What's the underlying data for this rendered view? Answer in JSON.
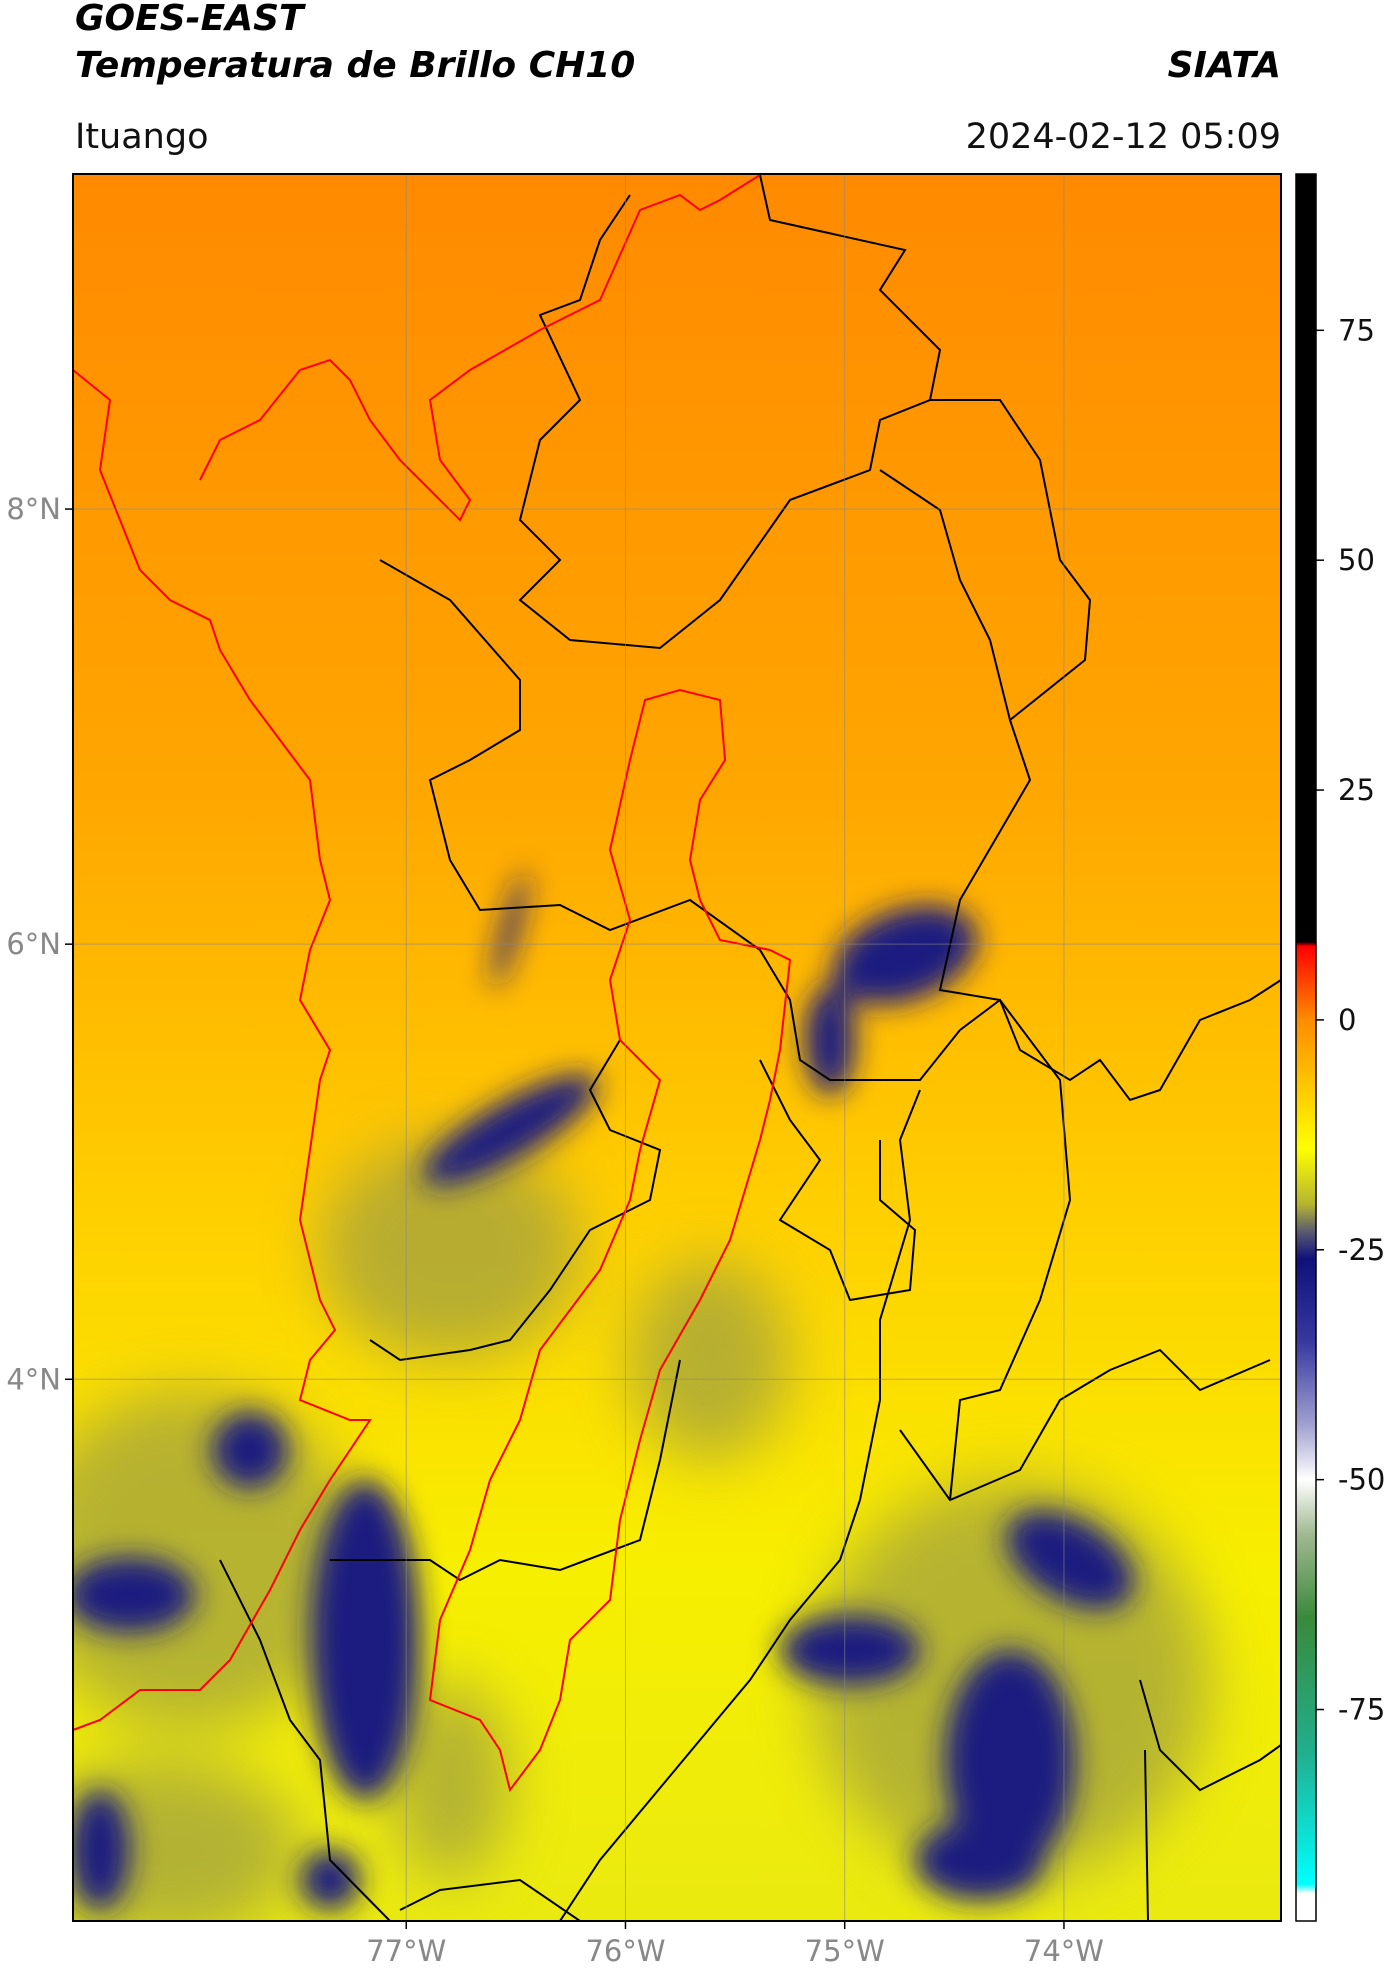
{
  "map": {
    "title": "GOES-EAST",
    "subtitle": "Temperatura de Brillo CH10",
    "source": "SIATA",
    "location": "Ituango",
    "datetime": "2024-02-12 05:09",
    "xlim": [
      -78.52,
      -73.01
    ],
    "ylim": [
      1.51,
      9.54
    ],
    "xticks": [
      {
        "value": -77,
        "label": "77°W"
      },
      {
        "value": -76,
        "label": "76°W"
      },
      {
        "value": -75,
        "label": "75°W"
      },
      {
        "value": -74,
        "label": "74°W"
      }
    ],
    "yticks": [
      {
        "value": 8,
        "label": "8°N"
      },
      {
        "value": 6,
        "label": "6°N"
      },
      {
        "value": 4,
        "label": "4°N"
      }
    ],
    "grid": true,
    "colorbar": {
      "lim": [
        -98,
        92
      ],
      "ticks": [
        75,
        50,
        25,
        0,
        -25,
        -50,
        -75
      ],
      "stops": [
        {
          "value": 92,
          "color": "#000000"
        },
        {
          "value": 8.5,
          "color": "#000000"
        },
        {
          "value": 8,
          "color": "#ff0000"
        },
        {
          "value": 0,
          "color": "#ff8c00"
        },
        {
          "value": -14,
          "color": "#ffff00"
        },
        {
          "value": -20,
          "color": "#b5b530"
        },
        {
          "value": -23,
          "color": "#5a5a70"
        },
        {
          "value": -26,
          "color": "#10107a"
        },
        {
          "value": -35,
          "color": "#3838a0"
        },
        {
          "value": -44,
          "color": "#a0a0d0"
        },
        {
          "value": -50,
          "color": "#ffffff"
        },
        {
          "value": -56,
          "color": "#a0b890"
        },
        {
          "value": -65,
          "color": "#3a8a3a"
        },
        {
          "value": -80,
          "color": "#20b090"
        },
        {
          "value": -94,
          "color": "#00ffff"
        },
        {
          "value": -95,
          "color": "#ffffff"
        },
        {
          "value": -98,
          "color": "#ffffff"
        }
      ]
    }
  }
}
